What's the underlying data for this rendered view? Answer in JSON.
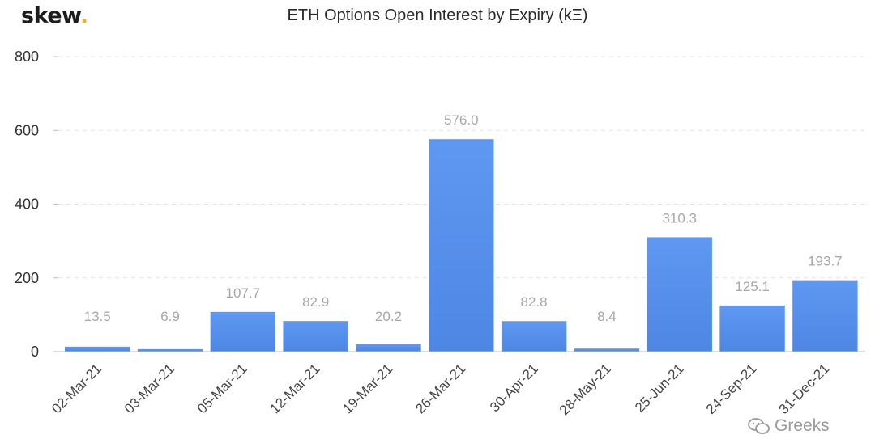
{
  "brand": {
    "name": "skew",
    "dot": "."
  },
  "watermark": {
    "text": "Greeks",
    "icon": "wechat-icon"
  },
  "colors": {
    "bar_top": "#5f98f2",
    "bar_bottom": "#4e86e4",
    "grid": "#e3e3e3",
    "brand_dot": "#f2b01e"
  },
  "chart_data": {
    "type": "bar",
    "title": "ETH Options Open Interest by Expiry (kΞ)",
    "xlabel": "",
    "ylabel": "",
    "categories": [
      "02-Mar-21",
      "03-Mar-21",
      "05-Mar-21",
      "12-Mar-21",
      "19-Mar-21",
      "26-Mar-21",
      "30-Apr-21",
      "28-May-21",
      "25-Jun-21",
      "24-Sep-21",
      "31-Dec-21"
    ],
    "values": [
      13.5,
      6.9,
      107.7,
      82.9,
      20.2,
      576.0,
      82.8,
      8.4,
      310.3,
      125.1,
      193.7
    ],
    "value_labels": [
      "13.5",
      "6.9",
      "107.7",
      "82.9",
      "20.2",
      "576.0",
      "82.8",
      "8.4",
      "310.3",
      "125.1",
      "193.7"
    ],
    "ylim": [
      0,
      800
    ],
    "yticks": [
      0,
      200,
      400,
      600,
      800
    ],
    "grid": true,
    "legend": "none"
  }
}
